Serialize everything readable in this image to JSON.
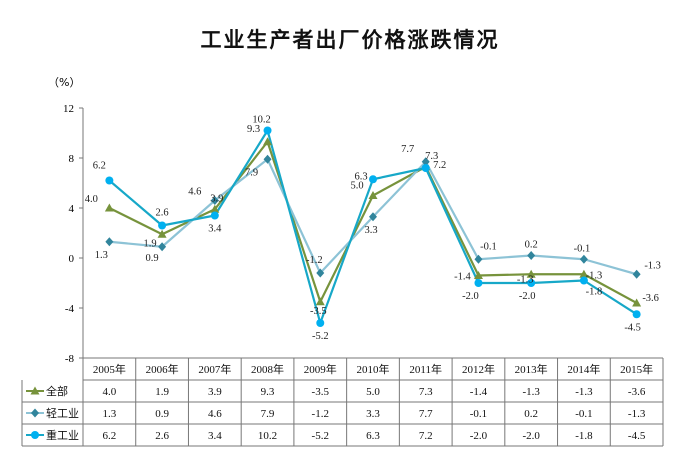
{
  "chart_data": {
    "type": "line",
    "title": "工业生产者出厂价格涨跌情况",
    "y_unit": "（%）",
    "ylim": [
      -8,
      12
    ],
    "yticks": [
      12,
      8,
      4,
      0,
      -4,
      -8
    ],
    "categories": [
      "2005年",
      "2006年",
      "2007年",
      "2008年",
      "2009年",
      "2010年",
      "2011年",
      "2012年",
      "2013年",
      "2014年",
      "2015年"
    ],
    "series": [
      {
        "name": "全部",
        "color": "#77933C",
        "marker": "triangle",
        "values": [
          4.0,
          1.9,
          3.9,
          9.3,
          -3.5,
          5.0,
          7.3,
          -1.4,
          -1.3,
          -1.3,
          -3.6
        ],
        "labels": [
          "4.0",
          "1.9",
          "3.9",
          "9.3",
          "-3.5",
          "5.0",
          "7.3",
          "-1.4",
          "-1.3",
          "-1.3",
          "-3.6"
        ]
      },
      {
        "name": "轻工业",
        "color": "#31859C",
        "line_color": "#8DC3D6",
        "marker": "diamond",
        "values": [
          1.3,
          0.9,
          4.6,
          7.9,
          -1.2,
          3.3,
          7.7,
          -0.1,
          0.2,
          -0.1,
          -1.3
        ],
        "labels": [
          "1.3",
          "0.9",
          "4.6",
          "7.9",
          "-1.2",
          "3.3",
          "7.7",
          "-0.1",
          "0.2",
          "-0.1",
          "-1.3"
        ]
      },
      {
        "name": "重工业",
        "color": "#00B0F0",
        "line_color": "#17A8C8",
        "marker": "circle",
        "values": [
          6.2,
          2.6,
          3.4,
          10.2,
          -5.2,
          6.3,
          7.2,
          -2.0,
          -2.0,
          -1.8,
          -4.5
        ],
        "labels": [
          "6.2",
          "2.6",
          "3.4",
          "10.2",
          "-5.2",
          "6.3",
          "7.2",
          "-2.0",
          "-2.0",
          "-1.8",
          "-4.5"
        ]
      }
    ],
    "data_table": true,
    "grid": false
  }
}
